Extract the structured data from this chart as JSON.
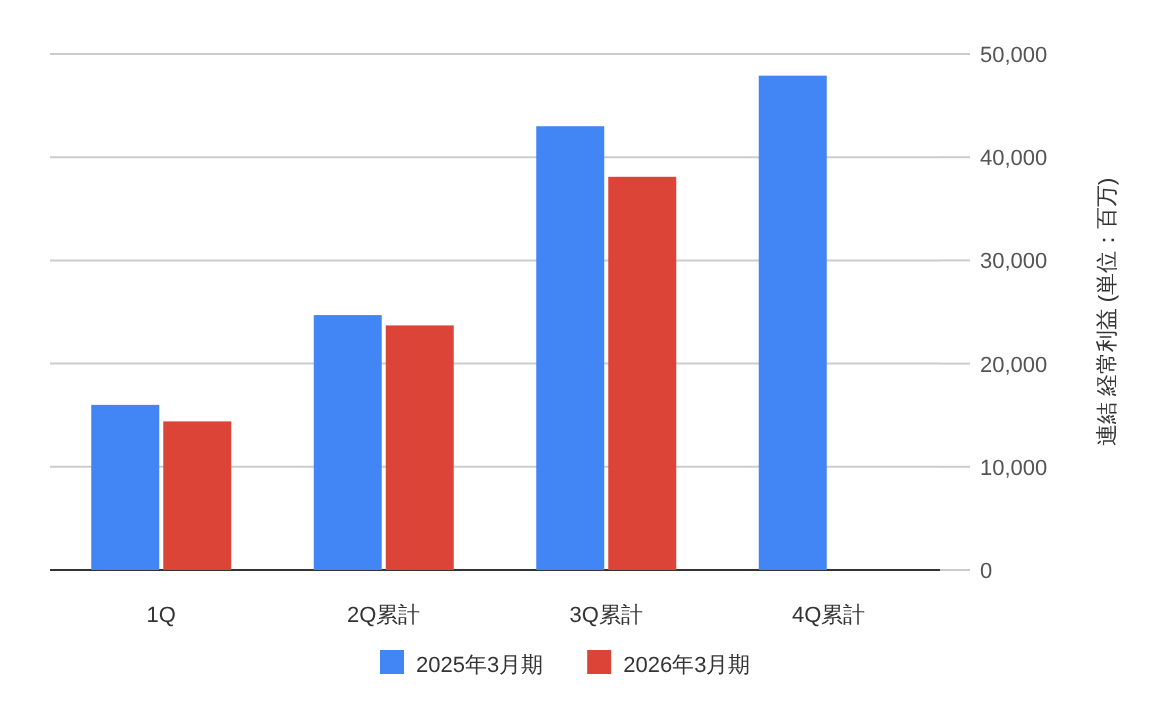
{
  "chart_data": {
    "type": "bar",
    "ylabel": "連結 経常利益 (単位：百万)",
    "categories": [
      "1Q",
      "2Q累計",
      "3Q累計",
      "4Q累計"
    ],
    "series": [
      {
        "name": "2025年3月期",
        "color": "#4285f4",
        "values": [
          16000,
          24700,
          43000,
          47900
        ]
      },
      {
        "name": "2026年3月期",
        "color": "#db4437",
        "values": [
          14400,
          23700,
          38100,
          null
        ]
      }
    ],
    "ylim": [
      0,
      50000
    ],
    "yticks": [
      {
        "value": 0,
        "label": "0"
      },
      {
        "value": 10000,
        "label": "10,000"
      },
      {
        "value": 20000,
        "label": "20,000"
      },
      {
        "value": 30000,
        "label": "30,000"
      },
      {
        "value": 40000,
        "label": "40,000"
      },
      {
        "value": 50000,
        "label": "50,000"
      }
    ],
    "grid": "y",
    "legend": "bottom"
  }
}
